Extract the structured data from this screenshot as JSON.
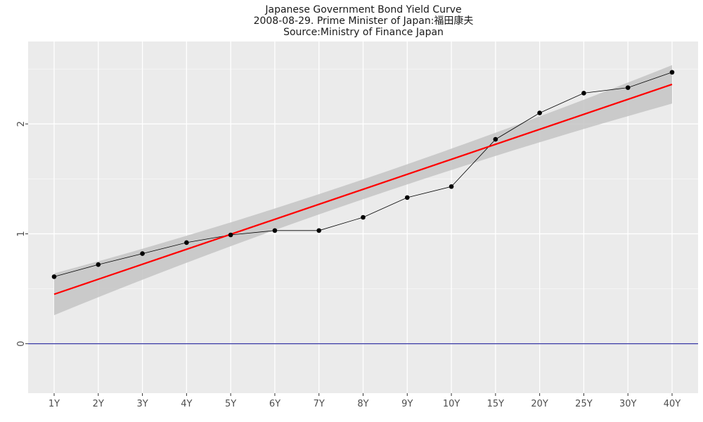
{
  "chart_data": {
    "type": "line",
    "title": "Japanese Government Bond Yield Curve",
    "subtitle": "2008-08-29. Prime Minister of Japan:福田康夫",
    "source": "Source:Ministry of Finance Japan",
    "xlabel": "",
    "ylabel": "",
    "categories": [
      "1Y",
      "2Y",
      "3Y",
      "4Y",
      "5Y",
      "6Y",
      "7Y",
      "8Y",
      "9Y",
      "10Y",
      "15Y",
      "20Y",
      "25Y",
      "30Y",
      "40Y"
    ],
    "series": [
      {
        "name": "yield",
        "values": [
          0.61,
          0.72,
          0.82,
          0.92,
          0.99,
          1.03,
          1.03,
          1.15,
          1.33,
          1.43,
          1.86,
          2.1,
          2.28,
          2.33,
          2.47
        ]
      }
    ],
    "fit": {
      "start": 0.45,
      "end": 2.36,
      "band_start": [
        0.26,
        0.64
      ],
      "band_mid": [
        1.04,
        1.22
      ],
      "band_end": [
        2.19,
        2.54
      ]
    },
    "reference_line": 0,
    "ylim": [
      -0.45,
      2.75
    ],
    "yticks": [
      0,
      1,
      2
    ],
    "grid": true,
    "colors": {
      "panel": "#ebebeb",
      "grid_major": "#ffffff",
      "grid_minor": "#f5f5f5",
      "line": "#000000",
      "point": "#000000",
      "fit_line": "#ff0000",
      "band": "#c4c4c4",
      "reference": "#00008b"
    }
  }
}
